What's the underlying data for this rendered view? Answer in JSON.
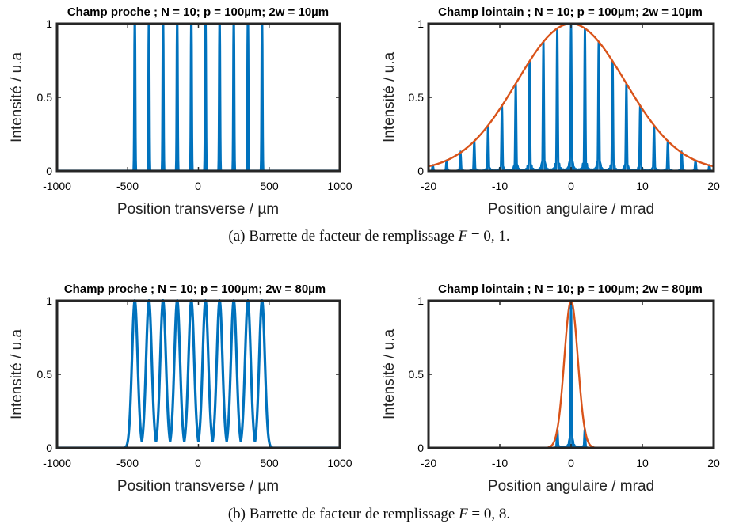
{
  "captions": {
    "a": {
      "prefix": "(a)",
      "text": "Barrette de facteur de remplissage",
      "var": "F",
      "eq": "= 0, 1."
    },
    "b": {
      "prefix": "(b)",
      "text": "Barrette de facteur de remplissage",
      "var": "F",
      "eq": "= 0, 8."
    }
  },
  "colors": {
    "blue": "#0072BD",
    "orange": "#D95319",
    "axis": "#262626"
  },
  "chart_data": [
    {
      "type": "line",
      "title": "Champ proche ; N = 10; p = 100µm; 2w = 10µm",
      "xlabel": "Position transverse / µm",
      "ylabel": "Intensité / u.a",
      "xlim": [
        -1000,
        1000
      ],
      "ylim": [
        0,
        1
      ],
      "xticks": [
        -1000,
        -500,
        0,
        500,
        1000
      ],
      "xtick_labels": [
        "-1000",
        "-500",
        "0",
        "500",
        "1000"
      ],
      "yticks": [
        0,
        0.5,
        1
      ],
      "ytick_labels": [
        "0",
        "0.5",
        "1"
      ],
      "grid": false,
      "series": [
        {
          "color": "#0072BD",
          "kind": "emitter-peaks",
          "N": 10,
          "pitch": 100,
          "width": 10,
          "centers": [
            -450,
            -350,
            -250,
            -150,
            -50,
            50,
            150,
            250,
            350,
            450
          ],
          "peak_value": 1
        }
      ]
    },
    {
      "type": "line",
      "title": "Champ lointain ; N = 10; p = 100µm; 2w = 10µm",
      "xlabel": "Position angulaire / mrad",
      "ylabel": "Intensité / u.a",
      "xlim": [
        -20,
        20
      ],
      "ylim": [
        0,
        1
      ],
      "xticks": [
        -20,
        -10,
        0,
        10,
        20
      ],
      "xtick_labels": [
        "-20",
        "-10",
        "0",
        "10",
        "20"
      ],
      "yticks": [
        0,
        0.5,
        1
      ],
      "ytick_labels": [
        "0",
        "0.5",
        "1"
      ],
      "grid": false,
      "series": [
        {
          "color": "#0072BD",
          "kind": "interference-peaks",
          "spacing": 1.94,
          "N": 10,
          "envelope_sigma": 7.6
        },
        {
          "color": "#D95319",
          "kind": "gaussian-envelope",
          "mu": 0,
          "sigma": 7.6,
          "peak_value": 1
        }
      ]
    },
    {
      "type": "line",
      "title": "Champ proche ; N = 10; p = 100µm; 2w = 80µm",
      "xlabel": "Position transverse / µm",
      "ylabel": "Intensité / u.a",
      "xlim": [
        -1000,
        1000
      ],
      "ylim": [
        0,
        1
      ],
      "xticks": [
        -1000,
        -500,
        0,
        500,
        1000
      ],
      "xtick_labels": [
        "-1000",
        "-500",
        "0",
        "500",
        "1000"
      ],
      "yticks": [
        0,
        0.5,
        1
      ],
      "ytick_labels": [
        "0",
        "0.5",
        "1"
      ],
      "grid": false,
      "series": [
        {
          "color": "#0072BD",
          "kind": "emitter-peaks",
          "N": 10,
          "pitch": 100,
          "width": 80,
          "centers": [
            -450,
            -350,
            -250,
            -150,
            -50,
            50,
            150,
            250,
            350,
            450
          ],
          "peak_value": 1
        }
      ]
    },
    {
      "type": "line",
      "title": "Champ lointain ; N = 10; p = 100µm; 2w = 80µm",
      "xlabel": "Position angulaire / mrad",
      "ylabel": "Intensité / u.a",
      "xlim": [
        -20,
        20
      ],
      "ylim": [
        0,
        1
      ],
      "xticks": [
        -20,
        -10,
        0,
        10,
        20
      ],
      "xtick_labels": [
        "-20",
        "-10",
        "0",
        "10",
        "20"
      ],
      "yticks": [
        0,
        0.5,
        1
      ],
      "ytick_labels": [
        "0",
        "0.5",
        "1"
      ],
      "grid": false,
      "series": [
        {
          "color": "#0072BD",
          "kind": "interference-peaks",
          "spacing": 1.94,
          "N": 10,
          "envelope_sigma": 0.95
        },
        {
          "color": "#D95319",
          "kind": "gaussian-envelope",
          "mu": 0,
          "sigma": 0.95,
          "peak_value": 1
        }
      ]
    }
  ]
}
